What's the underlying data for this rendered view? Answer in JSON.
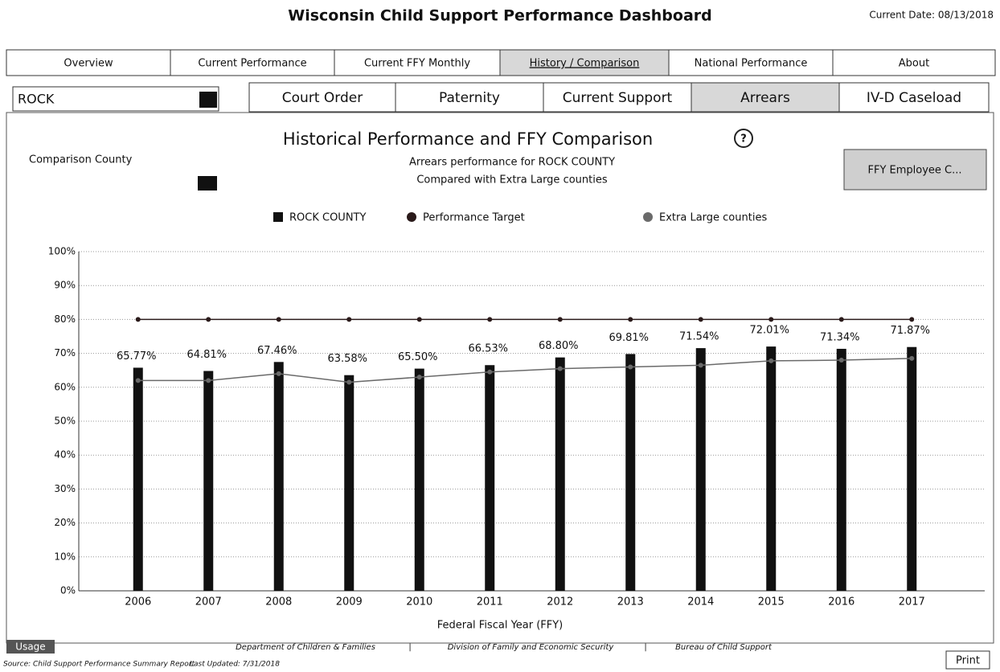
{
  "header": {
    "title": "Wisconsin Child Support Performance Dashboard",
    "date": "Current Date: 08/13/2018"
  },
  "tabs": [
    "Overview",
    "Current Performance",
    "Current FFY Monthly",
    "History / Comparison",
    "National Performance",
    "About"
  ],
  "county": "ROCK",
  "subtabs": [
    "Court Order",
    "Paternity",
    "Current Support",
    "Arrears",
    "IV-D Caseload"
  ],
  "comparison_label": "Comparison County",
  "help": "?",
  "button": "FFY Employee C...",
  "chart_data": {
    "type": "bar",
    "title": "Historical Performance and FFY Comparison",
    "subtitle": [
      "Arrears performance for ROCK COUNTY",
      "Compared with Extra Large counties"
    ],
    "x_label": "Federal Fiscal Year (FFY)",
    "categories": [
      "2006",
      "2007",
      "2008",
      "2009",
      "2010",
      "2011",
      "2012",
      "2013",
      "2014",
      "2015",
      "2016",
      "2017"
    ],
    "series": [
      {
        "name": "ROCK COUNTY",
        "type": "bar",
        "color": "#111111",
        "values": [
          65.77,
          64.81,
          67.46,
          63.58,
          65.5,
          66.53,
          68.8,
          69.81,
          71.54,
          72.01,
          71.34,
          71.87
        ],
        "value_labels": [
          "65.77%",
          "64.81%",
          "67.46%",
          "63.58%",
          "65.50%",
          "66.53%",
          "68.80%",
          "69.81%",
          "71.54%",
          "72.01%",
          "71.34%",
          "71.87%"
        ]
      },
      {
        "name": "Performance Target",
        "type": "line",
        "color": "#2a1a1a",
        "values": [
          80,
          80,
          80,
          80,
          80,
          80,
          80,
          80,
          80,
          80,
          80,
          80
        ]
      },
      {
        "name": "Extra Large counties",
        "type": "line",
        "color": "#6a6a6a",
        "values": [
          62,
          62,
          64,
          61.5,
          63,
          64.5,
          65.5,
          66,
          66.5,
          67.8,
          68,
          68.5
        ]
      }
    ],
    "ylim": [
      0,
      100
    ],
    "yticks": [
      {
        "value": 0,
        "label": "0%"
      },
      {
        "value": 10,
        "label": "10%"
      },
      {
        "value": 20,
        "label": "20%"
      },
      {
        "value": 30,
        "label": "30%"
      },
      {
        "value": 40,
        "label": "40%"
      },
      {
        "value": 50,
        "label": "50%"
      },
      {
        "value": 60,
        "label": "60%"
      },
      {
        "value": 70,
        "label": "70%"
      },
      {
        "value": 80,
        "label": "80%"
      },
      {
        "value": 90,
        "label": "90%"
      },
      {
        "value": 100,
        "label": "100%"
      }
    ],
    "grid": true,
    "legend": "top"
  },
  "footer": {
    "usage": "Usage",
    "links": [
      "Department of Children & Families",
      "Division of Family and Economic Security",
      "Bureau of Child Support"
    ],
    "separator": "|",
    "source": "Source: Child Support Performance Summary Report",
    "updated": "Last Updated: 7/31/2018",
    "print": "Print"
  }
}
